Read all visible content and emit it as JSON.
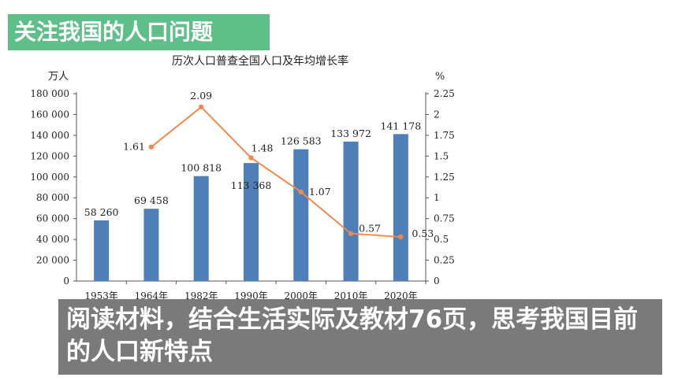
{
  "banner": {
    "title": "关注我国的人口问题"
  },
  "question": {
    "text": "阅读材料，结合生活实际及教材76页，思考我国目前的人口新特点"
  },
  "chart_data": {
    "type": "bar+line",
    "title": "历次人口普查全国人口及年均增长率",
    "y_left_unit": "万人",
    "y_right_unit": "%",
    "categories": [
      "1953年",
      "1964年",
      "1982年",
      "1990年",
      "2000年",
      "2010年",
      "2020年"
    ],
    "y_left_ticks": [
      "0",
      "20 000",
      "40 000",
      "60 000",
      "80 000",
      "100 000",
      "120 000",
      "140 000",
      "160 000",
      "180 000"
    ],
    "y_right_ticks": [
      "0",
      "0.25",
      "0.5",
      "0.75",
      "1",
      "1.25",
      "1.5",
      "1.75",
      "2",
      "2.25"
    ],
    "ylim_left": [
      0,
      180000
    ],
    "ylim_right": [
      0,
      2.25
    ],
    "series": [
      {
        "name": "全国人口",
        "kind": "bar",
        "color": "#4f7fb8",
        "values": [
          58260,
          69458,
          100818,
          113368,
          126583,
          133972,
          141178
        ],
        "labels": [
          "58 260",
          "69 458",
          "100 818",
          "113 368",
          "126 583",
          "133 972",
          "141 178"
        ]
      },
      {
        "name": "年均增长率",
        "kind": "line",
        "color": "#f08a4b",
        "values": [
          null,
          1.61,
          2.09,
          1.48,
          1.07,
          0.57,
          0.53
        ],
        "labels": [
          "",
          "1.61",
          "2.09",
          "1.48",
          "1.07",
          "0.57",
          "0.53"
        ]
      }
    ]
  }
}
